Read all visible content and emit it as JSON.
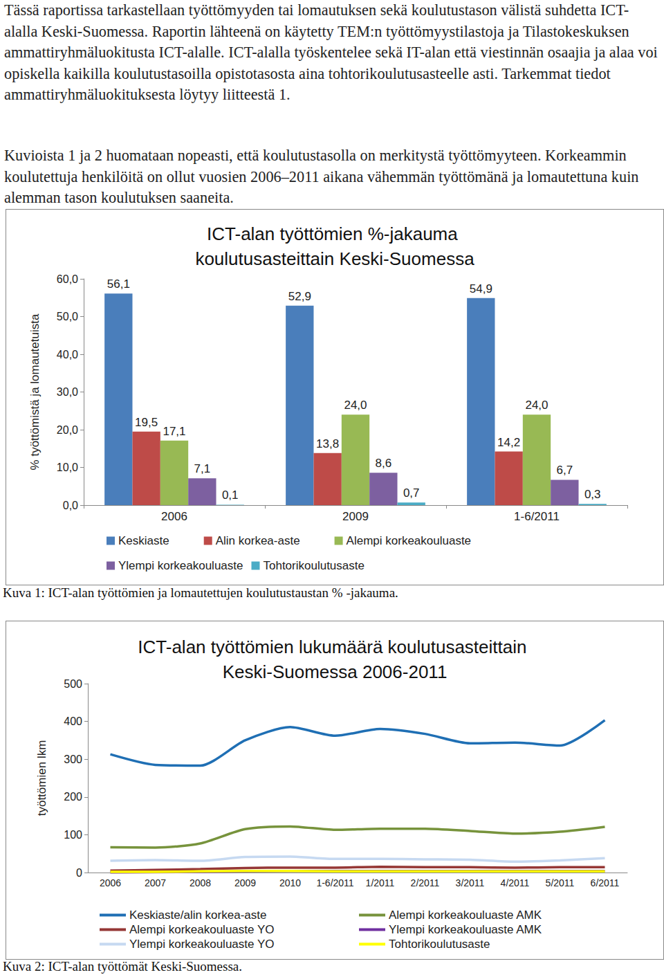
{
  "paragraphs": [
    "Tässä raportissa tarkastellaan työttömyyden tai lomautuksen sekä koulutustason välistä suhdetta ICT-alalla Keski-Suomessa. Raportin lähteenä on käytetty TEM:n työttömyystilastoja ja Tilastokeskuksen ammattiryhmäluokitusta ICT-alalle. ICT-alalla työskentelee sekä IT-alan että viestinnän osaajia ja alaa voi opiskella kaikilla koulutustasoilla opistotasosta aina tohtorikoulutusasteelle asti. Tarkemmat tiedot ammattiryhmäluokituksesta löytyy liitteestä 1.",
    "Kuvioista 1 ja 2 huomataan nopeasti, että koulutustasolla on merkitystä työttömyyteen. Korkeammin koulutettuja henkilöitä on ollut vuosien 2006–2011 aikana vähemmän työttömänä ja lomautettuna kuin alemman tason koulutuksen saaneita."
  ],
  "captions": [
    "Kuva 1: ICT-alan työttömien ja lomautettujen koulutustaustan % -jakauma.",
    "Kuva 2: ICT-alan työttömät Keski-Suomessa."
  ],
  "chart_data": [
    {
      "type": "bar",
      "title": "ICT-alan työttömien %-jakauma koulutusasteittain Keski-Suomessa",
      "y_label": "% työttömistä ja lomautetuista",
      "categories": [
        "2006",
        "2009",
        "1-6/2011"
      ],
      "series": [
        {
          "name": "Keskiaste",
          "color": "#4a7ebb",
          "values": [
            56.1,
            52.9,
            54.9
          ],
          "value_labels": [
            "56,1",
            "52,9",
            "54,9"
          ]
        },
        {
          "name": "Alin korkea-aste",
          "color": "#be4b48",
          "values": [
            19.5,
            13.8,
            14.2
          ],
          "value_labels": [
            "19,5",
            "13,8",
            "14,2"
          ]
        },
        {
          "name": "Alempi korkeakouluaste",
          "color": "#98b954",
          "values": [
            17.1,
            24.0,
            24.0
          ],
          "value_labels": [
            "17,1",
            "24,0",
            "24,0"
          ]
        },
        {
          "name": "Ylempi korkeakouluaste",
          "color": "#7d60a0",
          "values": [
            7.1,
            8.6,
            6.7
          ],
          "value_labels": [
            "7,1",
            "8,6",
            "6,7"
          ]
        },
        {
          "name": "Tohtorikoulutusaste",
          "color": "#4bacc6",
          "values": [
            0.1,
            0.7,
            0.3
          ],
          "value_labels": [
            "0,1",
            "0,7",
            "0,3"
          ]
        }
      ],
      "ylim": [
        0,
        60
      ],
      "yticks": [
        {
          "value": 0,
          "label": "0,0"
        },
        {
          "value": 10,
          "label": "10,0"
        },
        {
          "value": 20,
          "label": "20,0"
        },
        {
          "value": 30,
          "label": "30,0"
        },
        {
          "value": 40,
          "label": "40,0"
        },
        {
          "value": 50,
          "label": "50,0"
        },
        {
          "value": 60,
          "label": "60,0"
        }
      ],
      "grid": false,
      "legend": "bottom",
      "data_labels": true
    },
    {
      "type": "line",
      "title": "ICT-alan työttömien lukumäärä koulutusasteittain Keski-Suomessa 2006-2011",
      "y_label": "työttömien lkm",
      "categories": [
        "2006",
        "2007",
        "2008",
        "2009",
        "2010",
        "1-6/2011",
        "1/2011",
        "2/2011",
        "3/2011",
        "4/2011",
        "5/2011",
        "6/2011"
      ],
      "series": [
        {
          "name": "Keskiaste/alin korkea-aste",
          "color": "#1f6fb4",
          "values": [
            313,
            285,
            283,
            350,
            385,
            362,
            380,
            367,
            342,
            344,
            336,
            403
          ]
        },
        {
          "name": "Alempi korkeakouluaste AMK",
          "color": "#77933c",
          "values": [
            67,
            66,
            77,
            115,
            122,
            113,
            116,
            116,
            110,
            103,
            108,
            121
          ]
        },
        {
          "name": "Alempi korkeakouluaste YO",
          "color": "#953735",
          "values": [
            5,
            7,
            9,
            12,
            13,
            13,
            15,
            14,
            14,
            13,
            14,
            14
          ]
        },
        {
          "name": "Ylempi korkeakouluaste AMK",
          "color": "#7030a0",
          "values": [
            0,
            1,
            2,
            3,
            4,
            4,
            4,
            4,
            4,
            4,
            4,
            4
          ]
        },
        {
          "name": "Ylempi korkeakouluaste YO",
          "color": "#c6d9f1",
          "values": [
            31,
            33,
            31,
            41,
            42,
            36,
            36,
            35,
            34,
            29,
            32,
            38
          ]
        },
        {
          "name": "Tohtorikoulutusaste",
          "color": "#ffff00",
          "values": [
            2,
            2,
            3,
            4,
            4,
            3,
            3,
            3,
            3,
            3,
            3,
            3
          ]
        }
      ],
      "ylim": [
        0,
        500
      ],
      "yticks": [
        0,
        100,
        200,
        300,
        400,
        500
      ],
      "grid": false,
      "legend": "bottom",
      "data_labels": false
    }
  ]
}
